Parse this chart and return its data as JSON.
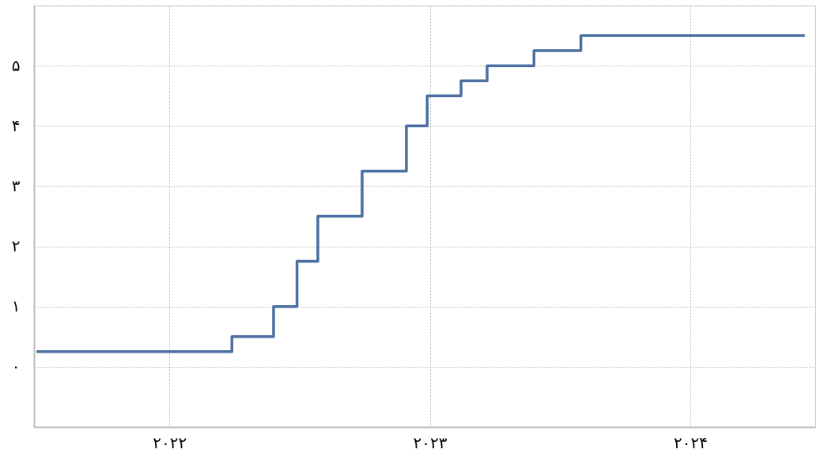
{
  "chart_data": {
    "type": "step",
    "x": [
      2021.49,
      2022.24,
      2022.4,
      2022.49,
      2022.57,
      2022.74,
      2022.91,
      2022.99,
      2023.12,
      2023.22,
      2023.4,
      2023.58,
      2024.44
    ],
    "series": [
      {
        "color": "#4a6fa0",
        "values": [
          0.25,
          0.5,
          1.0,
          1.75,
          2.5,
          3.25,
          4.0,
          4.5,
          4.75,
          5.0,
          5.25,
          5.5,
          5.5
        ]
      }
    ],
    "xlim": [
      2021.48,
      2024.48
    ],
    "xticks": [
      {
        "value": 2022,
        "label": "۲۰۲۲"
      },
      {
        "value": 2023,
        "label": "۲۰۲۳"
      },
      {
        "value": 2024,
        "label": "۲۰۲۴"
      }
    ],
    "ylim": [
      -1,
      6
    ],
    "yticks": [
      {
        "value": 0,
        "label": "۰"
      },
      {
        "value": 1,
        "label": "۱"
      },
      {
        "value": 2,
        "label": "۲"
      },
      {
        "value": 3,
        "label": "۳"
      },
      {
        "value": 4,
        "label": "۴"
      },
      {
        "value": 5,
        "label": "۵"
      },
      {
        "value": 6,
        "label": null
      }
    ],
    "grid": true,
    "line_style": "solid",
    "marker": "none"
  }
}
